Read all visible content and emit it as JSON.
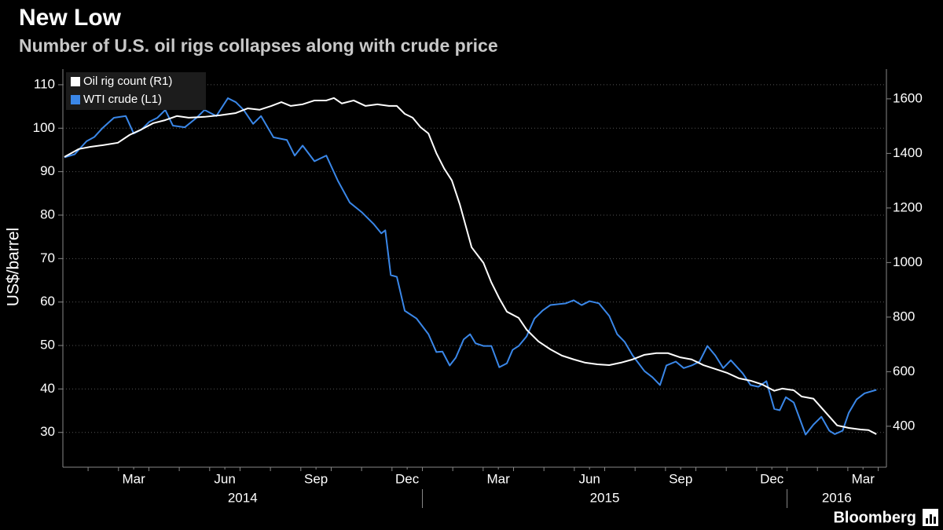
{
  "chart_data": {
    "type": "line",
    "title": "New Low",
    "subtitle": "Number of U.S. oil rigs collapses along with crude price",
    "y_label": "US$/barrel",
    "source": "Bloomberg",
    "xlim": [
      0.17,
      27.27
    ],
    "xticks": [
      {
        "value": 2.5,
        "label": "Mar"
      },
      {
        "value": 5.5,
        "label": "Jun"
      },
      {
        "value": 8.5,
        "label": "Sep"
      },
      {
        "value": 11.5,
        "label": "Dec"
      },
      {
        "value": 14.5,
        "label": "Mar"
      },
      {
        "value": 17.5,
        "label": "Jun"
      },
      {
        "value": 20.5,
        "label": "Sep"
      },
      {
        "value": 23.5,
        "label": "Dec"
      },
      {
        "value": 26.5,
        "label": "Mar"
      }
    ],
    "xminor": [
      1,
      2,
      3,
      4,
      5,
      6,
      7,
      8,
      9,
      10,
      11,
      12,
      13,
      14,
      15,
      16,
      17,
      18,
      19,
      20,
      21,
      22,
      23,
      24,
      25,
      26,
      27
    ],
    "years": [
      {
        "label": "2014",
        "start": 0,
        "end": 12
      },
      {
        "label": "2015",
        "start": 12,
        "end": 24
      },
      {
        "label": "2016",
        "start": 24,
        "end": 36
      }
    ],
    "ylim": [
      22,
      113.6
    ],
    "yticks": [
      30,
      40,
      50,
      60,
      70,
      80,
      90,
      100,
      110
    ],
    "y2lim": [
      250,
      1709
    ],
    "y2ticks": [
      400,
      600,
      800,
      1000,
      1200,
      1400,
      1600
    ],
    "grid": true,
    "legend": "top-left",
    "series": [
      {
        "name": "Oil rig count (R1)",
        "color": "#ffffff",
        "axis": "y2",
        "x": [
          0.22,
          0.69,
          1.08,
          1.47,
          1.98,
          2.37,
          2.76,
          3.15,
          3.54,
          3.92,
          4.31,
          4.83,
          5.35,
          5.86,
          6.25,
          6.64,
          7.03,
          7.36,
          7.67,
          8.06,
          8.45,
          8.84,
          9.09,
          9.35,
          9.74,
          10.13,
          10.52,
          10.9,
          11.16,
          11.42,
          11.68,
          11.94,
          12.2,
          12.46,
          12.72,
          12.97,
          13.23,
          13.62,
          14.01,
          14.27,
          14.53,
          14.78,
          15.17,
          15.43,
          15.82,
          16.21,
          16.59,
          16.98,
          17.36,
          17.76,
          18.15,
          18.53,
          18.92,
          19.31,
          19.7,
          20.08,
          20.47,
          20.86,
          21.25,
          21.64,
          22.02,
          22.41,
          22.8,
          23.19,
          23.58,
          23.84,
          24.22,
          24.48,
          24.87,
          25.26,
          25.65,
          26.03,
          26.42,
          26.68,
          26.94
        ],
        "values": [
          1387,
          1416,
          1424,
          1430,
          1439,
          1468,
          1488,
          1511,
          1522,
          1537,
          1531,
          1534,
          1540,
          1548,
          1565,
          1560,
          1574,
          1588,
          1574,
          1580,
          1594,
          1594,
          1603,
          1583,
          1594,
          1574,
          1580,
          1574,
          1574,
          1545,
          1531,
          1496,
          1473,
          1401,
          1344,
          1301,
          1214,
          1056,
          999,
          927,
          869,
          820,
          797,
          754,
          711,
          682,
          659,
          645,
          633,
          627,
          624,
          633,
          645,
          662,
          668,
          668,
          653,
          645,
          624,
          610,
          596,
          576,
          567,
          553,
          530,
          538,
          532,
          509,
          501,
          452,
          403,
          394,
          388,
          386,
          371
        ]
      },
      {
        "name": "WTI crude (L1)",
        "color": "#3a87e8",
        "axis": "y",
        "x": [
          0.22,
          0.56,
          0.95,
          1.21,
          1.47,
          1.85,
          2.24,
          2.5,
          2.76,
          3.02,
          3.28,
          3.54,
          3.79,
          4.18,
          4.57,
          4.83,
          5.22,
          5.6,
          5.86,
          6.12,
          6.43,
          6.69,
          7.1,
          7.54,
          7.8,
          8.06,
          8.45,
          8.84,
          9.22,
          9.61,
          10.0,
          10.39,
          10.65,
          10.78,
          10.96,
          11.16,
          11.42,
          11.81,
          12.2,
          12.46,
          12.66,
          12.9,
          13.1,
          13.36,
          13.57,
          13.75,
          14.01,
          14.27,
          14.53,
          14.78,
          14.97,
          15.17,
          15.43,
          15.69,
          15.95,
          16.21,
          16.46,
          16.72,
          16.98,
          17.24,
          17.5,
          17.81,
          18.15,
          18.41,
          18.66,
          18.92,
          19.31,
          19.57,
          19.82,
          20.03,
          20.34,
          20.6,
          20.86,
          21.12,
          21.38,
          21.64,
          21.9,
          22.15,
          22.54,
          22.8,
          23.06,
          23.32,
          23.58,
          23.76,
          23.96,
          24.22,
          24.61,
          24.87,
          25.13,
          25.39,
          25.57,
          25.83,
          26.03,
          26.29,
          26.55,
          26.94
        ],
        "values": [
          93.3,
          94,
          97,
          98,
          100,
          102.4,
          102.8,
          98.8,
          99.7,
          101.5,
          102.4,
          104.2,
          100.6,
          100.2,
          102.4,
          104.2,
          102.8,
          106.9,
          106,
          104.2,
          101,
          102.8,
          97.9,
          97.3,
          93.7,
          96,
          92.4,
          93.7,
          87.9,
          82.9,
          80.7,
          78,
          75.8,
          76.5,
          66.2,
          65.8,
          58,
          56.2,
          52.6,
          48.5,
          48.6,
          45.4,
          47.2,
          51.4,
          52.6,
          50.5,
          49.9,
          49.9,
          45,
          45.9,
          49,
          49.9,
          52.1,
          56.2,
          58,
          59.3,
          59.5,
          59.7,
          60.4,
          59.3,
          60.2,
          59.7,
          56.8,
          52.6,
          50.8,
          47.7,
          44.1,
          42.7,
          40.9,
          45.4,
          46.3,
          44.8,
          45.4,
          46.3,
          49.9,
          47.7,
          44.8,
          46.6,
          43.6,
          40.9,
          40.5,
          41.8,
          35.4,
          35.1,
          38.1,
          36.9,
          29.5,
          31.8,
          33.6,
          30.4,
          29.6,
          30.4,
          34.5,
          37.6,
          39,
          39.8
        ]
      }
    ]
  }
}
